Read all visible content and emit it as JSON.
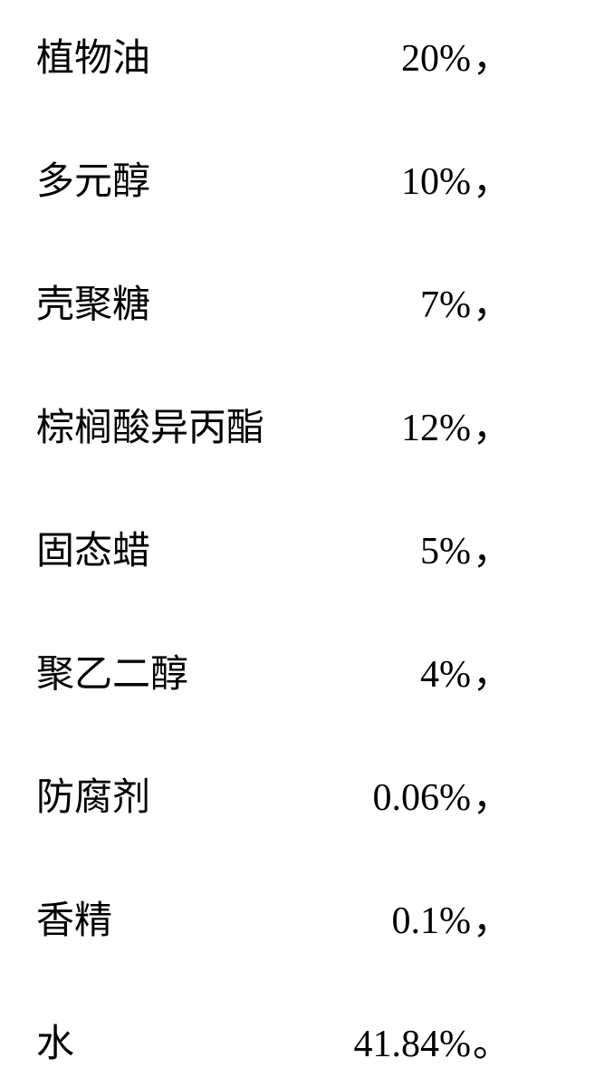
{
  "ingredients": {
    "rows": [
      {
        "label": "植物油",
        "value": "20%",
        "punct": "，"
      },
      {
        "label": "多元醇",
        "value": "10%",
        "punct": "，"
      },
      {
        "label": "壳聚糖",
        "value": "7%",
        "punct": "，"
      },
      {
        "label": "棕榈酸异丙酯",
        "value": "12%",
        "punct": "，"
      },
      {
        "label": "固态蜡",
        "value": "5%",
        "punct": "，"
      },
      {
        "label": "聚乙二醇",
        "value": "4%",
        "punct": "，"
      },
      {
        "label": "防腐剂",
        "value": "0.06%",
        "punct": "，"
      },
      {
        "label": "香精",
        "value": "0.1%",
        "punct": "，"
      },
      {
        "label": "水",
        "value": "41.84%",
        "punct": "。"
      }
    ],
    "styling": {
      "background_color": "#ffffff",
      "text_color": "#000000",
      "label_fontsize": 42,
      "value_fontsize": 42,
      "label_font": "SimSun",
      "value_font": "Times New Roman",
      "row_gap": 75,
      "label_width": 280,
      "value_width": 200,
      "label_align": "left",
      "value_align": "right"
    }
  }
}
